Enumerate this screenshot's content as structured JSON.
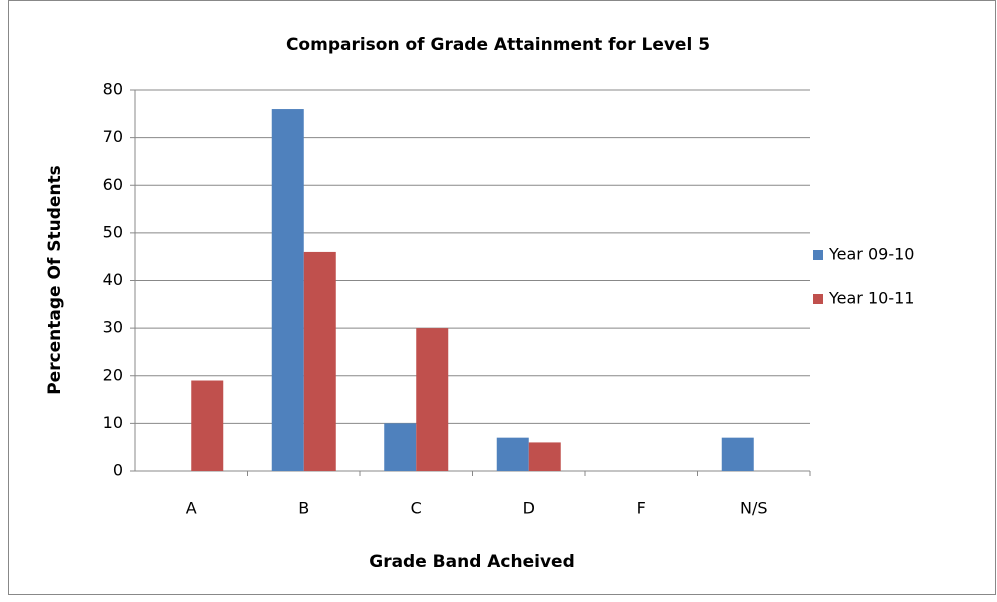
{
  "chart_data": {
    "type": "bar",
    "title": "Comparison of Grade Attainment for Level 5",
    "x_label": "Grade Band Acheived",
    "y_label": "Percentage Of Students",
    "categories": [
      "A",
      "B",
      "C",
      "D",
      "F",
      "N/S"
    ],
    "series": [
      {
        "name": "Year 09-10",
        "color": "#4f81bd",
        "values": [
          0,
          76,
          10,
          7,
          0,
          7
        ]
      },
      {
        "name": "Year 10-11",
        "color": "#c0504d",
        "values": [
          19,
          46,
          30,
          6,
          0,
          0
        ]
      }
    ],
    "ylim": [
      0,
      80
    ],
    "yticks": [
      0,
      10,
      20,
      30,
      40,
      50,
      60,
      70,
      80
    ],
    "grid": true,
    "legend": "right"
  }
}
